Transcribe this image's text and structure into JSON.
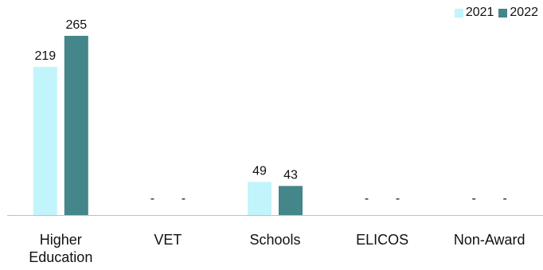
{
  "chart_data": {
    "type": "bar",
    "title": "",
    "xlabel": "",
    "ylabel": "",
    "categories": [
      "Higher Education",
      "VET",
      "Schools",
      "ELICOS",
      "Non-Award"
    ],
    "series": [
      {
        "name": "2021",
        "color": "#c1f5fb",
        "values": [
          219,
          null,
          49,
          null,
          null
        ],
        "labels": [
          "219",
          "-",
          "49",
          "-",
          "-"
        ]
      },
      {
        "name": "2022",
        "color": "#44868a",
        "values": [
          265,
          null,
          43,
          null,
          null
        ],
        "labels": [
          "265",
          "-",
          "43",
          "-",
          "-"
        ]
      }
    ],
    "ylim": [
      0,
      265
    ],
    "grid": false,
    "y_axis_visible": false,
    "legend_position": "top-right",
    "axis_line_color": "#c0c0c0"
  }
}
